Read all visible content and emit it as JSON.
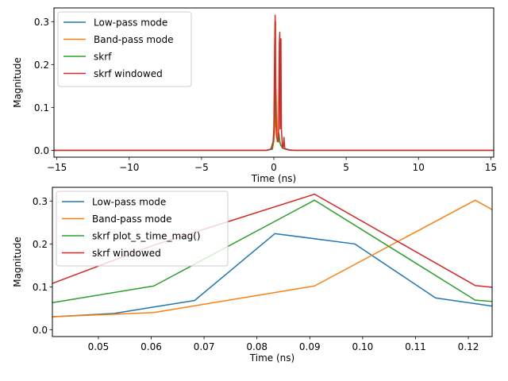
{
  "colors": {
    "low_pass": "#1f77b4",
    "band_pass": "#ff7f0e",
    "skrf": "#2ca02c",
    "skrf_windowed": "#d62728",
    "axes": "#000000",
    "legend_border": "#cccccc"
  },
  "chart_data": [
    {
      "type": "line",
      "xlabel": "Time (ns)",
      "ylabel": "Magnitude",
      "xlim": [
        -15.2,
        15.2
      ],
      "ylim": [
        -0.016,
        0.332
      ],
      "xticks": [
        -15,
        -10,
        -5,
        0,
        5,
        10,
        15
      ],
      "xtick_labels": [
        "−15",
        "−10",
        "−5",
        "0",
        "5",
        "10",
        "15"
      ],
      "yticks": [
        0.0,
        0.1,
        0.2,
        0.3
      ],
      "ytick_labels": [
        "0.0",
        "0.1",
        "0.2",
        "0.3"
      ],
      "grid": false,
      "legend": "top-left",
      "series": [
        {
          "name": "Low-pass mode",
          "color_key": "low_pass",
          "x": [
            -15.2,
            -0.5,
            -0.1,
            0.0,
            0.05,
            0.08,
            0.12,
            0.2,
            0.3,
            0.35,
            0.45,
            0.6,
            0.8,
            1.2,
            15.2
          ],
          "y": [
            0.0,
            0.0,
            0.003,
            0.03,
            0.1,
            0.22,
            0.1,
            0.03,
            0.02,
            0.025,
            0.015,
            0.005,
            0.003,
            0.0,
            0.0
          ]
        },
        {
          "name": "Band-pass mode",
          "color_key": "band_pass",
          "x": [
            -15.2,
            -0.5,
            -0.1,
            0.0,
            0.06,
            0.09,
            0.121,
            0.15,
            0.25,
            0.35,
            0.45,
            0.6,
            0.8,
            1.2,
            15.2
          ],
          "y": [
            0.0,
            0.0,
            0.003,
            0.02,
            0.04,
            0.1,
            0.3,
            0.15,
            0.04,
            0.02,
            0.015,
            0.005,
            0.003,
            0.0,
            0.0
          ]
        },
        {
          "name": "skrf",
          "color_key": "skrf",
          "x": [
            -15.2,
            -0.5,
            -0.1,
            0.0,
            0.06,
            0.09,
            0.12,
            0.2,
            0.3,
            0.35,
            0.42,
            0.5,
            0.7,
            1.2,
            15.2
          ],
          "y": [
            0.0,
            0.0,
            0.003,
            0.03,
            0.1,
            0.3,
            0.08,
            0.03,
            0.02,
            0.04,
            0.02,
            0.01,
            0.004,
            0.0,
            0.0
          ]
        },
        {
          "name": "skrf windowed",
          "color_key": "skrf_windowed",
          "x": [
            -15.2,
            -0.5,
            -0.2,
            -0.05,
            0.0,
            0.03,
            0.06,
            0.09,
            0.12,
            0.18,
            0.25,
            0.32,
            0.38,
            0.41,
            0.43,
            0.46,
            0.49,
            0.52,
            0.6,
            0.66,
            0.7,
            0.72,
            0.75,
            0.8,
            1.0,
            1.5,
            15.2
          ],
          "y": [
            0.0,
            0.0,
            0.003,
            0.02,
            0.05,
            0.15,
            0.25,
            0.315,
            0.12,
            0.04,
            0.02,
            0.03,
            0.25,
            0.275,
            0.05,
            0.1,
            0.26,
            0.05,
            0.005,
            0.01,
            0.03,
            0.02,
            0.005,
            0.003,
            0.001,
            0.0,
            0.0
          ]
        }
      ]
    },
    {
      "type": "line",
      "xlabel": "Time (ns)",
      "ylabel": "Magnitude",
      "xlim": [
        0.0413,
        0.1245
      ],
      "ylim": [
        -0.016,
        0.332
      ],
      "xticks": [
        0.05,
        0.06,
        0.07,
        0.08,
        0.09,
        0.1,
        0.11,
        0.12
      ],
      "xtick_labels": [
        "0.05",
        "0.06",
        "0.07",
        "0.08",
        "0.09",
        "0.10",
        "0.11",
        "0.12"
      ],
      "yticks": [
        0.0,
        0.1,
        0.2,
        0.3
      ],
      "ytick_labels": [
        "0.0",
        "0.1",
        "0.2",
        "0.3"
      ],
      "grid": false,
      "legend": "top-left",
      "series": [
        {
          "name": "Low-pass mode",
          "color_key": "low_pass",
          "x": [
            0.0413,
            0.053,
            0.0605,
            0.0682,
            0.0834,
            0.0985,
            0.1138,
            0.1245
          ],
          "y": [
            0.03,
            0.038,
            0.053,
            0.068,
            0.224,
            0.2,
            0.074,
            0.055
          ]
        },
        {
          "name": "Band-pass mode",
          "color_key": "band_pass",
          "x": [
            0.0413,
            0.0605,
            0.0909,
            0.1213,
            0.1245
          ],
          "y": [
            0.03,
            0.04,
            0.102,
            0.302,
            0.28
          ]
        },
        {
          "name": "skrf plot_s_time_mag()",
          "color_key": "skrf",
          "x": [
            0.0413,
            0.0605,
            0.0909,
            0.1213,
            0.1245
          ],
          "y": [
            0.063,
            0.102,
            0.302,
            0.069,
            0.066
          ]
        },
        {
          "name": "skrf windowed",
          "color_key": "skrf_windowed",
          "x": [
            0.0413,
            0.0605,
            0.0909,
            0.1213,
            0.1245
          ],
          "y": [
            0.108,
            0.197,
            0.316,
            0.103,
            0.099
          ]
        }
      ]
    }
  ]
}
